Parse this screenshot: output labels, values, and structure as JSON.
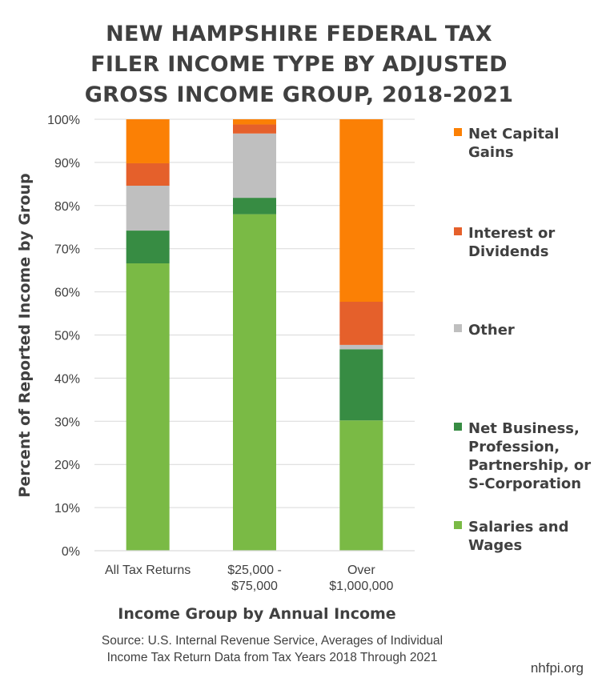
{
  "title_lines": [
    "NEW HAMPSHIRE FEDERAL TAX",
    "FILER INCOME TYPE BY ADJUSTED",
    "GROSS INCOME GROUP, 2018-2021"
  ],
  "source_lines": [
    "Source: U.S. Internal Revenue Service, Averages of Individual",
    "Income Tax Return Data from Tax Years 2018 Through 2021"
  ],
  "brand": "nhfpi.org",
  "chart_data": {
    "type": "bar",
    "stacked": true,
    "title": "NEW HAMPSHIRE FEDERAL TAX FILER INCOME TYPE BY ADJUSTED GROSS INCOME GROUP, 2018-2021",
    "xlabel": "Income Group by Annual Income",
    "ylabel": "Percent of Reported Income by Group",
    "ylim": [
      0,
      100
    ],
    "y_ticks": [
      "0%",
      "10%",
      "20%",
      "30%",
      "40%",
      "50%",
      "60%",
      "70%",
      "80%",
      "90%",
      "100%"
    ],
    "grid": true,
    "legend_position": "right",
    "categories": [
      [
        "All Tax Returns"
      ],
      [
        "$25,000 -",
        "$75,000"
      ],
      [
        "Over",
        "$1,000,000"
      ]
    ],
    "series": [
      {
        "name": "Salaries and Wages",
        "legend_lines": [
          "Salaries and",
          "Wages"
        ],
        "color": "#7aba45",
        "values": [
          66.6,
          78.0,
          30.2
        ]
      },
      {
        "name": "Net Business, Profession, Partnership, or S-Corporation",
        "legend_lines": [
          "Net Business,",
          "Profession,",
          "Partnership, or",
          "S-Corporation"
        ],
        "color": "#378c43",
        "values": [
          7.6,
          3.8,
          16.5
        ]
      },
      {
        "name": "Other",
        "legend_lines": [
          "Other"
        ],
        "color": "#bfbfbf",
        "values": [
          10.4,
          14.9,
          1.0
        ]
      },
      {
        "name": "Interest or Dividends",
        "legend_lines": [
          "Interest or",
          "Dividends"
        ],
        "color": "#e5602b",
        "values": [
          5.2,
          2.1,
          10.0
        ]
      },
      {
        "name": "Net Capital Gains",
        "legend_lines": [
          "Net Capital",
          "Gains"
        ],
        "color": "#fb8005",
        "values": [
          10.2,
          1.2,
          42.3
        ]
      }
    ]
  }
}
